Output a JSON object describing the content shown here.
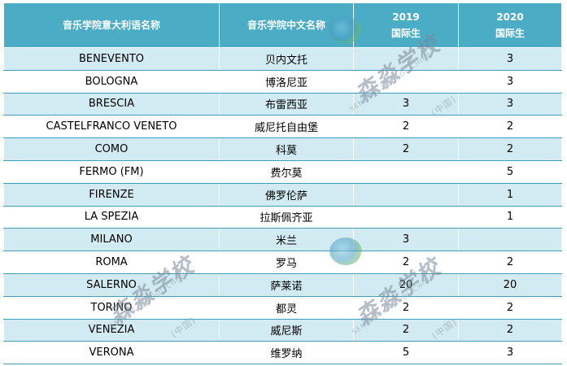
{
  "header": {
    "col_italian": "音乐学院意大利语名称",
    "col_chinese": "音乐学院中文名称",
    "col_2019_year": "2019",
    "col_2019_label": "国际生",
    "col_2020_year": "2020",
    "col_2020_label": "国际生"
  },
  "rows": [
    {
      "it": "BENEVENTO",
      "zh": "贝内文托",
      "y2019": "",
      "y2020": "3"
    },
    {
      "it": "BOLOGNA",
      "zh": "博洛尼亚",
      "y2019": "",
      "y2020": "3"
    },
    {
      "it": "BRESCIA",
      "zh": "布雷西亚",
      "y2019": "3",
      "y2020": "3"
    },
    {
      "it": "CASTELFRANCO VENETO",
      "zh": "威尼托自由堡",
      "y2019": "2",
      "y2020": "2"
    },
    {
      "it": "COMO",
      "zh": "科莫",
      "y2019": "2",
      "y2020": "2"
    },
    {
      "it": "FERMO (FM)",
      "zh": "费尔莫",
      "y2019": "",
      "y2020": "5"
    },
    {
      "it": "FIRENZE",
      "zh": "佛罗伦萨",
      "y2019": "",
      "y2020": "1"
    },
    {
      "it": "LA SPEZIA",
      "zh": "拉斯佩齐亚",
      "y2019": "",
      "y2020": "1"
    },
    {
      "it": "MILANO",
      "zh": "米兰",
      "y2019": "3",
      "y2020": ""
    },
    {
      "it": "ROMA",
      "zh": "罗马",
      "y2019": "2",
      "y2020": "2"
    },
    {
      "it": "SALERNO",
      "zh": "萨莱诺",
      "y2019": "20",
      "y2020": "20"
    },
    {
      "it": "TORINO",
      "zh": "都灵",
      "y2019": "2",
      "y2020": "2"
    },
    {
      "it": "VENEZIA",
      "zh": "威尼斯",
      "y2019": "2",
      "y2020": "2"
    },
    {
      "it": "VERONA",
      "zh": "维罗纳",
      "y2019": "5",
      "y2020": "3"
    }
  ],
  "watermark": {
    "text": "森淼学校",
    "suffix": "(中国)",
    "sub": "SENMIAO SCHOOL CHINA"
  },
  "colors": {
    "header_bg": "#4aacc5",
    "band": "#d2ebf2",
    "rule": "#3f9fb9"
  }
}
